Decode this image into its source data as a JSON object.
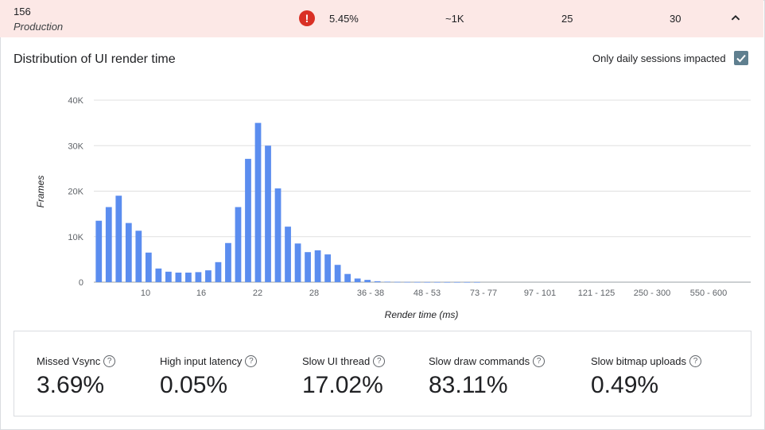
{
  "summary": {
    "release_id": "156",
    "track": "Production",
    "alert_glyph": "!",
    "rate": "5.45%",
    "sessions": "~1K",
    "col3": "25",
    "col4": "30"
  },
  "chart_header": {
    "title": "Distribution of UI render time",
    "filter_label": "Only daily sessions impacted",
    "filter_checked": true
  },
  "chart_data": {
    "type": "bar",
    "title": "Distribution of UI render time",
    "xlabel": "Render time (ms)",
    "ylabel": "Frames",
    "ylim": [
      0,
      40000
    ],
    "y_ticks": [
      "0",
      "10K",
      "20K",
      "30K",
      "40K"
    ],
    "x_tick_labels": [
      "10",
      "16",
      "22",
      "28",
      "36 - 38",
      "48 - 53",
      "73 - 77",
      "97 - 101",
      "121 - 125",
      "250 - 300",
      "550 - 600"
    ],
    "values": [
      13500,
      16500,
      19000,
      13000,
      11300,
      6500,
      3000,
      2300,
      2100,
      2100,
      2200,
      2600,
      4400,
      8600,
      16500,
      27100,
      35000,
      30000,
      20600,
      12200,
      8500,
      6600,
      7000,
      6100,
      3800,
      1800,
      800,
      500,
      200,
      100,
      50,
      30,
      20,
      10,
      10,
      5,
      5,
      5,
      5,
      0,
      0,
      0,
      0,
      0,
      0,
      0,
      0,
      0,
      0,
      0,
      0,
      0,
      0,
      0,
      0,
      0,
      0,
      0,
      0,
      0,
      0,
      0,
      0,
      0,
      0,
      0
    ],
    "grid": true,
    "color": "#5b8def"
  },
  "metrics": [
    {
      "label": "Missed Vsync",
      "value": "3.69%"
    },
    {
      "label": "High input latency",
      "value": "0.05%"
    },
    {
      "label": "Slow UI thread",
      "value": "17.02%"
    },
    {
      "label": "Slow draw commands",
      "value": "83.11%"
    },
    {
      "label": "Slow bitmap uploads",
      "value": "0.49%"
    }
  ],
  "icons": {
    "alert": "alert-icon",
    "collapse": "chevron-up-icon",
    "help": "help-icon",
    "check": "checkbox-checked-icon"
  }
}
